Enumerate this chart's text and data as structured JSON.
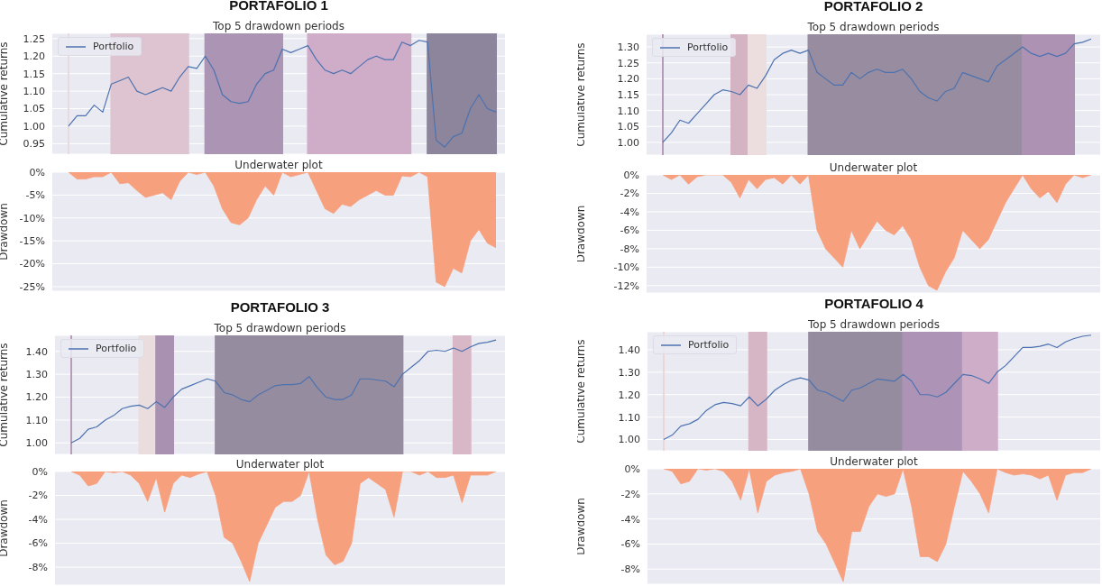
{
  "chart_data": [
    {
      "type": "line",
      "title": "PORTAFOLIO 1",
      "subtitle": "Top 5 drawdown periods",
      "ylabel": "Cumulative returns",
      "legend": "top left",
      "grid": "y",
      "tick_labels": "y",
      "categories": [
        null,
        null,
        null,
        null,
        null,
        null,
        null,
        null,
        null,
        null,
        null,
        null,
        null,
        null,
        null,
        null,
        null,
        null,
        null,
        null,
        null,
        null,
        null,
        null,
        null,
        null,
        null,
        null,
        null,
        null,
        null,
        null,
        null,
        null,
        null,
        null,
        null,
        null,
        null,
        null,
        null,
        null,
        null,
        null,
        null,
        null,
        null,
        null,
        null,
        null,
        null
      ],
      "ylim": [
        0.92,
        1.265
      ],
      "yticks": [
        {
          "value": 0.95,
          "label": "0.95"
        },
        {
          "value": 1.0,
          "label": "1.00"
        },
        {
          "value": 1.05,
          "label": "1.05"
        },
        {
          "value": 1.1,
          "label": "1.10"
        },
        {
          "value": 1.15,
          "label": "1.15"
        },
        {
          "value": 1.2,
          "label": "1.20"
        },
        {
          "value": 1.25,
          "label": "1.25"
        }
      ],
      "series": [
        {
          "name": "Portfolio",
          "color": "#4c72b0",
          "values": [
            1.0,
            1.03,
            1.03,
            1.06,
            1.04,
            1.12,
            1.13,
            1.14,
            1.1,
            1.09,
            1.1,
            1.11,
            1.1,
            1.14,
            1.17,
            1.165,
            1.2,
            1.16,
            1.09,
            1.07,
            1.065,
            1.07,
            1.12,
            1.15,
            1.16,
            1.22,
            1.21,
            1.22,
            1.23,
            1.19,
            1.16,
            1.15,
            1.16,
            1.15,
            1.17,
            1.19,
            1.2,
            1.19,
            1.19,
            1.24,
            1.23,
            1.245,
            1.24,
            0.96,
            0.94,
            0.97,
            0.98,
            1.05,
            1.09,
            1.05,
            1.04
          ]
        }
      ]
    },
    {
      "type": "area",
      "subtitle": "Underwater plot",
      "ylabel": "Drawdown",
      "grid": "y",
      "tick_labels": "y",
      "categories": [
        null,
        null,
        null,
        null,
        null,
        null,
        null,
        null,
        null,
        null,
        null,
        null,
        null,
        null,
        null,
        null,
        null,
        null,
        null,
        null,
        null,
        null,
        null,
        null,
        null,
        null,
        null,
        null,
        null,
        null,
        null,
        null,
        null,
        null,
        null,
        null,
        null,
        null,
        null,
        null,
        null,
        null,
        null,
        null,
        null,
        null,
        null,
        null,
        null,
        null,
        null
      ],
      "ylim": [
        -26,
        0
      ],
      "yticks": [
        {
          "value": 0,
          "label": "0%"
        },
        {
          "value": -5,
          "label": "-5%"
        },
        {
          "value": -10,
          "label": "-10%"
        },
        {
          "value": -15,
          "label": "-15%"
        },
        {
          "value": -20,
          "label": "-20%"
        },
        {
          "value": -25,
          "label": "-25%"
        }
      ],
      "series": [
        {
          "color": "#f7a07e",
          "values": [
            0,
            -1.5,
            -1.5,
            -1,
            -1,
            0,
            -2.5,
            -2.3,
            -4,
            -5.5,
            -5,
            -4.5,
            -6,
            -2,
            0,
            -0.5,
            0,
            -3,
            -8,
            -11,
            -11.5,
            -10,
            -6,
            -3,
            -5,
            0,
            -1,
            -0.5,
            0,
            -4,
            -8,
            -9,
            -7,
            -7.5,
            -6,
            -5,
            -4,
            -5,
            -5,
            -0.8,
            -1,
            0,
            -1,
            -24,
            -25,
            -21,
            -22,
            -15,
            -12.5,
            -15.5,
            -16.5
          ]
        }
      ]
    },
    {
      "type": "line",
      "title": "PORTAFOLIO 2",
      "subtitle": "Top 5 drawdown periods",
      "ylabel": "Cumulative returns",
      "legend": "top left",
      "grid": "y",
      "tick_labels": "y",
      "categories": [
        null,
        null,
        null,
        null,
        null,
        null,
        null,
        null,
        null,
        null,
        null,
        null,
        null,
        null,
        null,
        null,
        null,
        null,
        null,
        null,
        null,
        null,
        null,
        null,
        null,
        null,
        null,
        null,
        null,
        null,
        null,
        null,
        null,
        null,
        null,
        null,
        null,
        null,
        null,
        null,
        null,
        null,
        null,
        null,
        null,
        null,
        null,
        null,
        null,
        null,
        null
      ],
      "ylim": [
        0.96,
        1.34
      ],
      "yticks": [
        {
          "value": 1.0,
          "label": "1.00"
        },
        {
          "value": 1.05,
          "label": "1.05"
        },
        {
          "value": 1.1,
          "label": "1.10"
        },
        {
          "value": 1.15,
          "label": "1.15"
        },
        {
          "value": 1.2,
          "label": "1.20"
        },
        {
          "value": 1.25,
          "label": "1.25"
        },
        {
          "value": 1.3,
          "label": "1.30"
        }
      ],
      "series": [
        {
          "name": "Portfolio",
          "color": "#4c72b0",
          "values": [
            1.0,
            1.03,
            1.07,
            1.06,
            1.09,
            1.12,
            1.15,
            1.165,
            1.16,
            1.15,
            1.18,
            1.17,
            1.21,
            1.26,
            1.28,
            1.29,
            1.28,
            1.29,
            1.22,
            1.2,
            1.18,
            1.18,
            1.22,
            1.2,
            1.22,
            1.23,
            1.22,
            1.22,
            1.23,
            1.2,
            1.16,
            1.14,
            1.13,
            1.16,
            1.17,
            1.22,
            1.21,
            1.2,
            1.19,
            1.24,
            1.26,
            1.28,
            1.3,
            1.28,
            1.27,
            1.28,
            1.27,
            1.28,
            1.31,
            1.315,
            1.325
          ]
        }
      ]
    },
    {
      "type": "area",
      "subtitle": "Underwater plot",
      "ylabel": "Drawdown",
      "grid": "y",
      "tick_labels": "y",
      "categories": [
        null,
        null,
        null,
        null,
        null,
        null,
        null,
        null,
        null,
        null,
        null,
        null,
        null,
        null,
        null,
        null,
        null,
        null,
        null,
        null,
        null,
        null,
        null,
        null,
        null,
        null,
        null,
        null,
        null,
        null,
        null,
        null,
        null,
        null,
        null,
        null,
        null,
        null,
        null,
        null,
        null,
        null,
        null,
        null,
        null,
        null,
        null,
        null,
        null,
        null,
        null
      ],
      "ylim": [
        -12.8,
        0
      ],
      "yticks": [
        {
          "value": 0,
          "label": "0%"
        },
        {
          "value": -2,
          "label": "-2%"
        },
        {
          "value": -4,
          "label": "-4%"
        },
        {
          "value": -6,
          "label": "-6%"
        },
        {
          "value": -8,
          "label": "-8%"
        },
        {
          "value": -10,
          "label": "-10%"
        },
        {
          "value": -12,
          "label": "-12%"
        }
      ],
      "series": [
        {
          "color": "#f7a07e",
          "values": [
            0,
            -0.5,
            0,
            -1,
            -0.2,
            0,
            0,
            0,
            -0.8,
            -2.5,
            -0.5,
            -1.5,
            -0.5,
            -0.3,
            -1,
            0,
            -1,
            0,
            -6,
            -8,
            -9,
            -10,
            -6,
            -8,
            -6.5,
            -5,
            -6,
            -6.5,
            -5.5,
            -7,
            -10,
            -12,
            -12.5,
            -10.5,
            -9,
            -6,
            -7,
            -8,
            -7,
            -5,
            -3,
            -1.5,
            0,
            -1.5,
            -2.5,
            -1.8,
            -3,
            -1,
            0,
            -0.3,
            0
          ]
        }
      ]
    },
    {
      "type": "line",
      "title": "PORTAFOLIO 3",
      "subtitle": "Top 5 drawdown periods",
      "ylabel": "Cumulative returns",
      "legend": "top left",
      "grid": "y",
      "tick_labels": "y",
      "categories": [
        null,
        null,
        null,
        null,
        null,
        null,
        null,
        null,
        null,
        null,
        null,
        null,
        null,
        null,
        null,
        null,
        null,
        null,
        null,
        null,
        null,
        null,
        null,
        null,
        null,
        null,
        null,
        null,
        null,
        null,
        null,
        null,
        null,
        null,
        null,
        null,
        null,
        null,
        null,
        null,
        null,
        null,
        null,
        null,
        null,
        null,
        null,
        null,
        null,
        null,
        null
      ],
      "ylim": [
        0.95,
        1.47
      ],
      "yticks": [
        {
          "value": 1.0,
          "label": "1.00"
        },
        {
          "value": 1.1,
          "label": "1.10"
        },
        {
          "value": 1.2,
          "label": "1.20"
        },
        {
          "value": 1.3,
          "label": "1.30"
        },
        {
          "value": 1.4,
          "label": "1.40"
        }
      ],
      "series": [
        {
          "name": "Portfolio",
          "color": "#4c72b0",
          "values": [
            1.0,
            1.02,
            1.06,
            1.07,
            1.1,
            1.12,
            1.15,
            1.16,
            1.165,
            1.15,
            1.18,
            1.155,
            1.2,
            1.235,
            1.25,
            1.265,
            1.28,
            1.27,
            1.22,
            1.21,
            1.19,
            1.18,
            1.21,
            1.23,
            1.25,
            1.255,
            1.255,
            1.26,
            1.29,
            1.24,
            1.2,
            1.19,
            1.19,
            1.21,
            1.28,
            1.28,
            1.275,
            1.27,
            1.245,
            1.3,
            1.33,
            1.36,
            1.4,
            1.405,
            1.4,
            1.415,
            1.4,
            1.42,
            1.435,
            1.44,
            1.45
          ]
        }
      ]
    },
    {
      "type": "area",
      "subtitle": "Underwater plot",
      "ylabel": "Drawdown",
      "grid": "y",
      "tick_labels": "y",
      "categories": [
        null,
        null,
        null,
        null,
        null,
        null,
        null,
        null,
        null,
        null,
        null,
        null,
        null,
        null,
        null,
        null,
        null,
        null,
        null,
        null,
        null,
        null,
        null,
        null,
        null,
        null,
        null,
        null,
        null,
        null,
        null,
        null,
        null,
        null,
        null,
        null,
        null,
        null,
        null,
        null,
        null,
        null,
        null,
        null,
        null,
        null,
        null,
        null,
        null,
        null,
        null
      ],
      "ylim": [
        -9.5,
        0
      ],
      "yticks": [
        {
          "value": 0,
          "label": "0%"
        },
        {
          "value": -2,
          "label": "-2%"
        },
        {
          "value": -4,
          "label": "-4%"
        },
        {
          "value": -6,
          "label": "-6%"
        },
        {
          "value": -8,
          "label": "-8%"
        }
      ],
      "series": [
        {
          "color": "#f7a07e",
          "values": [
            0,
            -0.3,
            -1.2,
            -1,
            0,
            -0.1,
            0,
            -0.3,
            -1,
            -2.5,
            -0.5,
            -3.4,
            -1,
            -0.3,
            -0.5,
            -0.2,
            0,
            -2,
            -5.5,
            -6,
            -7.5,
            -9.2,
            -6,
            -4.5,
            -3,
            -2.5,
            -2.5,
            -2,
            0,
            -4,
            -7,
            -7.8,
            -7.5,
            -6,
            -1,
            -0.5,
            -1,
            -1.5,
            -3.8,
            0,
            0,
            -0.3,
            0,
            -0.5,
            -0.5,
            -0.3,
            -2.6,
            -0.3,
            -0.3,
            -0.3,
            0
          ]
        }
      ]
    },
    {
      "type": "line",
      "title": "PORTAFOLIO 4",
      "subtitle": "Top 5 drawdown periods",
      "ylabel": "Cumulative returns",
      "legend": "top left",
      "grid": "y",
      "tick_labels": "y",
      "categories": [
        null,
        null,
        null,
        null,
        null,
        null,
        null,
        null,
        null,
        null,
        null,
        null,
        null,
        null,
        null,
        null,
        null,
        null,
        null,
        null,
        null,
        null,
        null,
        null,
        null,
        null,
        null,
        null,
        null,
        null,
        null,
        null,
        null,
        null,
        null,
        null,
        null,
        null,
        null,
        null,
        null,
        null,
        null,
        null,
        null,
        null,
        null,
        null,
        null,
        null,
        null
      ],
      "ylim": [
        0.95,
        1.48
      ],
      "yticks": [
        {
          "value": 1.0,
          "label": "1.00"
        },
        {
          "value": 1.1,
          "label": "1.10"
        },
        {
          "value": 1.2,
          "label": "1.20"
        },
        {
          "value": 1.3,
          "label": "1.30"
        },
        {
          "value": 1.4,
          "label": "1.40"
        }
      ],
      "series": [
        {
          "name": "Portfolio",
          "color": "#4c72b0",
          "values": [
            1.0,
            1.02,
            1.06,
            1.07,
            1.09,
            1.13,
            1.155,
            1.165,
            1.16,
            1.15,
            1.19,
            1.15,
            1.18,
            1.22,
            1.245,
            1.265,
            1.275,
            1.265,
            1.22,
            1.21,
            1.19,
            1.17,
            1.22,
            1.23,
            1.25,
            1.27,
            1.265,
            1.26,
            1.29,
            1.26,
            1.2,
            1.2,
            1.19,
            1.21,
            1.25,
            1.29,
            1.285,
            1.27,
            1.25,
            1.3,
            1.33,
            1.37,
            1.41,
            1.41,
            1.415,
            1.425,
            1.41,
            1.435,
            1.45,
            1.46,
            1.465
          ]
        }
      ]
    },
    {
      "type": "area",
      "subtitle": "Underwater plot",
      "ylabel": "Drawdown",
      "grid": "y",
      "tick_labels": "y",
      "categories": [
        null,
        null,
        null,
        null,
        null,
        null,
        null,
        null,
        null,
        null,
        null,
        null,
        null,
        null,
        null,
        null,
        null,
        null,
        null,
        null,
        null,
        null,
        null,
        null,
        null,
        null,
        null,
        null,
        null,
        null,
        null,
        null,
        null,
        null,
        null,
        null,
        null,
        null,
        null,
        null,
        null,
        null,
        null,
        null,
        null,
        null,
        null,
        null,
        null,
        null,
        null
      ],
      "ylim": [
        -9.2,
        0
      ],
      "yticks": [
        {
          "value": 0,
          "label": "0%"
        },
        {
          "value": -2,
          "label": "-2%"
        },
        {
          "value": -4,
          "label": "-4%"
        },
        {
          "value": -6,
          "label": "-6%"
        },
        {
          "value": -8,
          "label": "-8%"
        }
      ],
      "series": [
        {
          "color": "#f7a07e",
          "values": [
            0,
            -0.2,
            -1.2,
            -1,
            0,
            -0.1,
            0,
            -0.2,
            -1,
            -2.5,
            0,
            -3.5,
            -1,
            -0.5,
            -0.3,
            -0.2,
            0,
            -2,
            -5,
            -6,
            -7.5,
            -9,
            -5,
            -5,
            -3,
            -2,
            -2.2,
            -2,
            0,
            -3,
            -7,
            -7,
            -7.4,
            -6,
            -3,
            -0.2,
            -1,
            -2,
            -3.5,
            0,
            -0.3,
            -0.5,
            -0.4,
            -0.5,
            -0.8,
            -0.5,
            -2.5,
            -0.5,
            -0.3,
            -0.3,
            0
          ]
        }
      ]
    }
  ]
}
